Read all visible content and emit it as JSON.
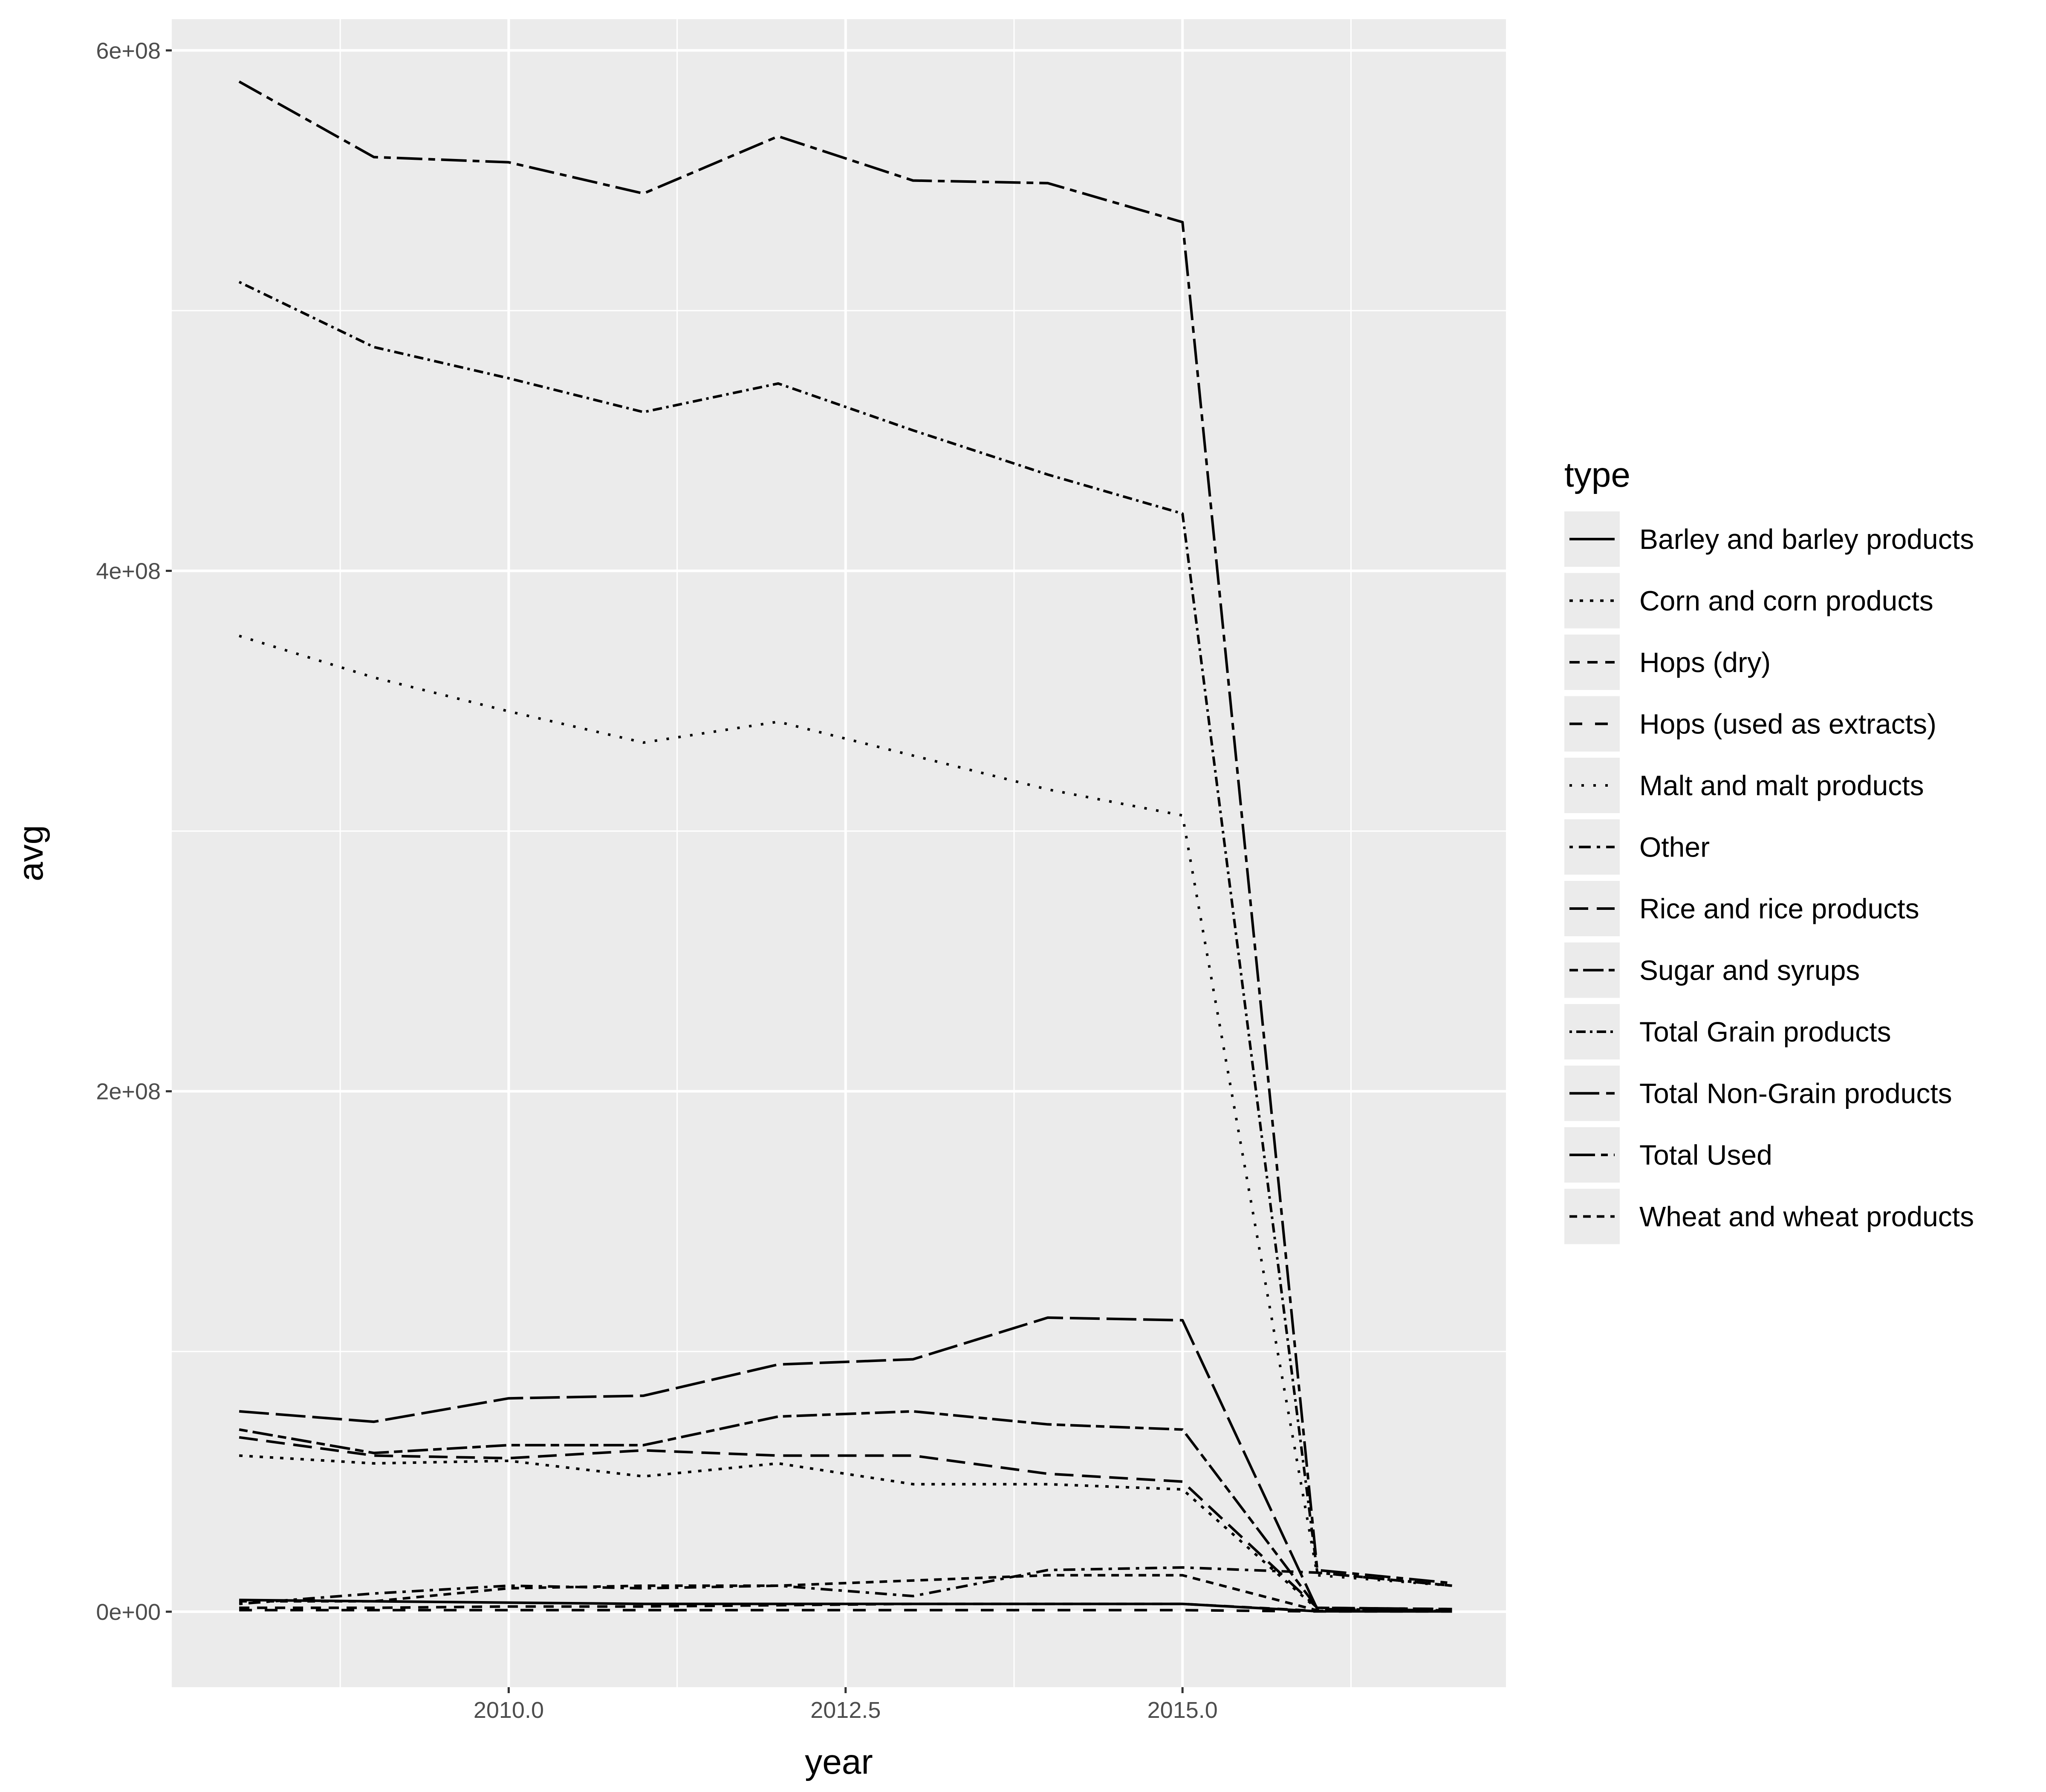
{
  "chart_data": {
    "type": "line",
    "xlabel": "year",
    "ylabel": "avg",
    "xlim": [
      2007.5,
      2017.4
    ],
    "ylim": [
      -29000000,
      612000000
    ],
    "x_ticks": [
      2010.0,
      2012.5,
      2015.0
    ],
    "x_tick_labels": [
      "2010.0",
      "2012.5",
      "2015.0"
    ],
    "y_ticks": [
      0,
      200000000,
      400000000,
      600000000
    ],
    "y_tick_labels": [
      "0e+00",
      "2e+08",
      "4e+08",
      "6e+08"
    ],
    "grid": true,
    "legend": {
      "title": "type",
      "position": "right"
    },
    "x": [
      2008,
      2009,
      2010,
      2011,
      2012,
      2013,
      2014,
      2015,
      2016,
      2017
    ],
    "series": [
      {
        "name": "Barley and barley products",
        "dash": "solid",
        "values": [
          4500000,
          4000000,
          3500000,
          3000000,
          3000000,
          3000000,
          3000000,
          3000000,
          150000,
          100000
        ]
      },
      {
        "name": "Corn and corn products",
        "dash": "dotted",
        "values": [
          60000000,
          57000000,
          58000000,
          52000000,
          57000000,
          49000000,
          49000000,
          47000000,
          1000000,
          500000
        ]
      },
      {
        "name": "Hops (dry)",
        "dash": "dashed",
        "values": [
          1500000,
          1500000,
          2000000,
          2000000,
          2500000,
          3000000,
          3000000,
          3000000,
          300000,
          200000
        ]
      },
      {
        "name": "Hops (used as extracts)",
        "dash": "dashed-wide",
        "values": [
          600000,
          600000,
          600000,
          600000,
          600000,
          600000,
          600000,
          600000,
          100000,
          100000
        ]
      },
      {
        "name": "Malt and malt products",
        "dash": "dotted-sparse",
        "values": [
          375000000,
          359000000,
          346000000,
          334000000,
          342000000,
          329000000,
          316000000,
          306000000,
          14000000,
          10000000
        ]
      },
      {
        "name": "Other",
        "dash": "dotdash",
        "values": [
          3000000,
          7000000,
          10000000,
          9000000,
          10000000,
          6000000,
          16000000,
          17000000,
          15000000,
          10000000
        ]
      },
      {
        "name": "Rice and rice products",
        "dash": "longdash",
        "values": [
          67000000,
          60000000,
          59000000,
          62000000,
          60000000,
          60000000,
          53000000,
          50000000,
          1500000,
          1000000
        ]
      },
      {
        "name": "Sugar and syrups",
        "dash": "twodash",
        "values": [
          70000000,
          61000000,
          64000000,
          64000000,
          75000000,
          77000000,
          72000000,
          70000000,
          1500000,
          1000000
        ]
      },
      {
        "name": "Total Grain products",
        "dash": "dotdash-dense",
        "values": [
          511000000,
          486000000,
          474000000,
          461000000,
          472000000,
          454000000,
          437000000,
          422000000,
          15000000,
          10000000
        ]
      },
      {
        "name": "Total Non-Grain products",
        "dash": "longdash-solid",
        "values": [
          77000000,
          73000000,
          82000000,
          83000000,
          95000000,
          97000000,
          113000000,
          112000000,
          1000000,
          500000
        ]
      },
      {
        "name": "Total Used",
        "dash": "longdash-twodash",
        "values": [
          588000000,
          559000000,
          557000000,
          545000000,
          567000000,
          550000000,
          549000000,
          534000000,
          16000000,
          11000000
        ]
      },
      {
        "name": "Wheat and wheat products",
        "dash": "dashed-short",
        "values": [
          4000000,
          4000000,
          9000000,
          10000000,
          10000000,
          12000000,
          14000000,
          14000000,
          500000,
          300000
        ]
      }
    ]
  }
}
